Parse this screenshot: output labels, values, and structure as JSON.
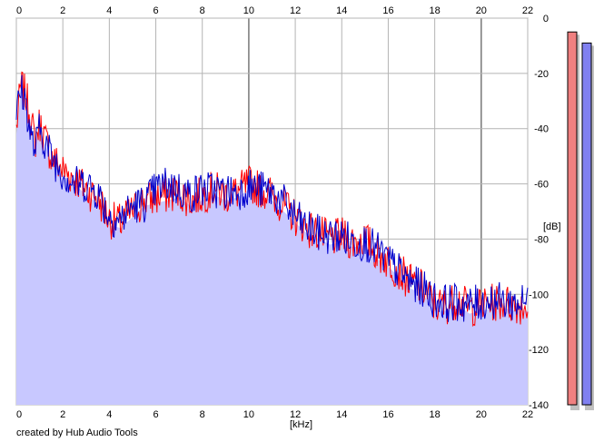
{
  "chart_data": {
    "type": "area",
    "xlabel": "[kHz]",
    "ylabel": "[dB]",
    "xlim": [
      0,
      22
    ],
    "ylim": [
      -140,
      0
    ],
    "x_ticks": [
      0,
      2,
      4,
      6,
      8,
      10,
      12,
      14,
      16,
      18,
      20,
      22
    ],
    "x_tick_labels": [
      "0",
      "2",
      "4",
      "6",
      "8",
      "10",
      "12",
      "14",
      "16",
      "18",
      "20",
      "22"
    ],
    "y_ticks": [
      0,
      -20,
      -40,
      -60,
      -80,
      -100,
      -120,
      -140
    ],
    "y_tick_labels": [
      "0",
      "-20",
      "-40",
      "-60",
      "-80",
      "-100",
      "-120",
      "-140"
    ],
    "grid": true,
    "fill_color": "#c8c8ff",
    "series": [
      {
        "color": "#ff0000",
        "x": [
          0,
          0.2,
          0.4,
          0.6,
          0.8,
          1.0,
          1.5,
          2.0,
          2.5,
          3.0,
          3.5,
          4.0,
          4.5,
          5.0,
          5.5,
          6.0,
          6.5,
          7.0,
          7.5,
          8.0,
          8.5,
          9.0,
          9.5,
          10.0,
          10.5,
          11.0,
          11.5,
          12.0,
          12.5,
          13.0,
          13.5,
          14.0,
          14.5,
          15.0,
          15.5,
          16.0,
          16.5,
          17.0,
          17.5,
          18.0,
          18.5,
          19.0,
          19.5,
          20.0,
          20.5,
          21.0,
          21.5,
          22.0
        ],
        "y": [
          -40,
          -24,
          -28,
          -35,
          -45,
          -38,
          -50,
          -55,
          -58,
          -62,
          -65,
          -73,
          -74,
          -70,
          -66,
          -65,
          -64,
          -63,
          -66,
          -64,
          -62,
          -64,
          -63,
          -60,
          -62,
          -64,
          -68,
          -72,
          -76,
          -78,
          -80,
          -79,
          -81,
          -80,
          -85,
          -88,
          -92,
          -96,
          -98,
          -104,
          -104,
          -102,
          -105,
          -104,
          -103,
          -103,
          -104,
          -104
        ]
      },
      {
        "color": "#0000cc",
        "x": [
          0,
          0.2,
          0.4,
          0.6,
          0.8,
          1.0,
          1.5,
          2.0,
          2.5,
          3.0,
          3.5,
          4.0,
          4.5,
          5.0,
          5.5,
          6.0,
          6.5,
          7.0,
          7.5,
          8.0,
          8.5,
          9.0,
          9.5,
          10.0,
          10.5,
          11.0,
          11.5,
          12.0,
          12.5,
          13.0,
          13.5,
          14.0,
          14.5,
          15.0,
          15.5,
          16.0,
          16.5,
          17.0,
          17.5,
          18.0,
          18.5,
          19.0,
          19.5,
          20.0,
          20.5,
          21.0,
          21.5,
          22.0
        ],
        "y": [
          -35,
          -26,
          -30,
          -42,
          -48,
          -40,
          -50,
          -56,
          -60,
          -60,
          -63,
          -72,
          -73,
          -68,
          -67,
          -62,
          -60,
          -62,
          -64,
          -62,
          -62,
          -63,
          -63,
          -61,
          -62,
          -63,
          -67,
          -72,
          -76,
          -78,
          -79,
          -79,
          -81,
          -81,
          -84,
          -88,
          -92,
          -96,
          -98,
          -102,
          -103,
          -103,
          -104,
          -103,
          -102,
          -103,
          -103,
          -103
        ]
      }
    ],
    "level_meters": [
      {
        "color": "#f08080",
        "level_db": -5
      },
      {
        "color": "#8080f0",
        "level_db": -9
      }
    ]
  },
  "credit": "created by Hub Audio Tools"
}
